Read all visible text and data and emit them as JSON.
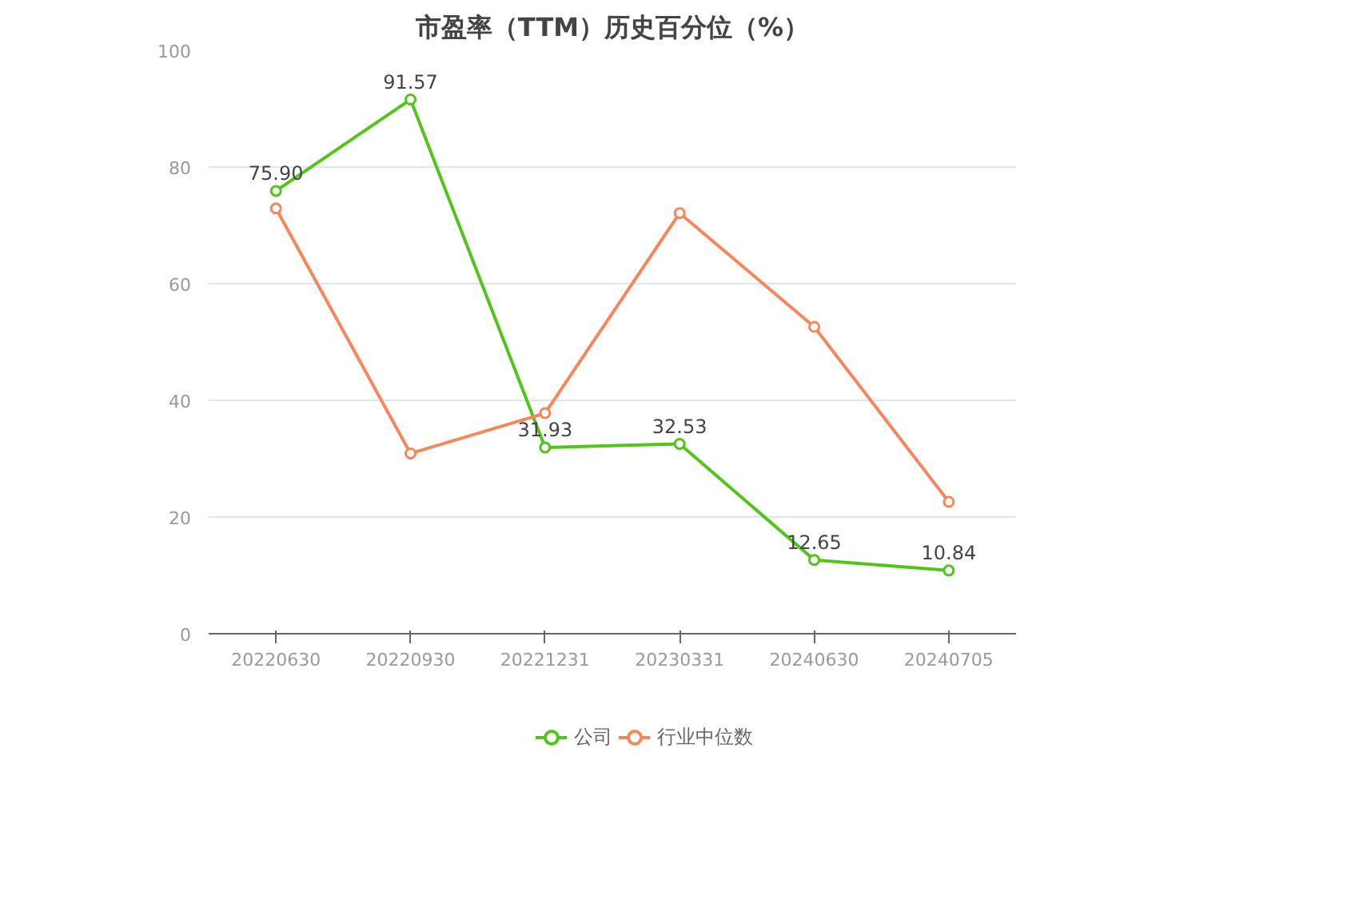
{
  "chart_data": {
    "type": "line",
    "title": "市盈率（TTM）历史百分位（%）",
    "categories": [
      "20220630",
      "20220930",
      "20221231",
      "20230331",
      "20240630",
      "20240705"
    ],
    "series": [
      {
        "name": "公司",
        "color": "#52c41a",
        "values": [
          75.9,
          91.57,
          31.93,
          32.53,
          12.65,
          10.84
        ],
        "value_labels": [
          "75.90",
          "91.57",
          "31.93",
          "32.53",
          "12.65",
          "10.84"
        ]
      },
      {
        "name": "行业中位数",
        "color": "#f7875a",
        "values": [
          72.9,
          30.9,
          37.8,
          72.1,
          52.6,
          22.6
        ]
      }
    ],
    "ylim": [
      0,
      100
    ],
    "yticks": [
      0,
      20,
      40,
      60,
      80,
      100
    ],
    "grid": "y",
    "legend": "bottom",
    "marker": "circle",
    "line_style": "solid"
  }
}
